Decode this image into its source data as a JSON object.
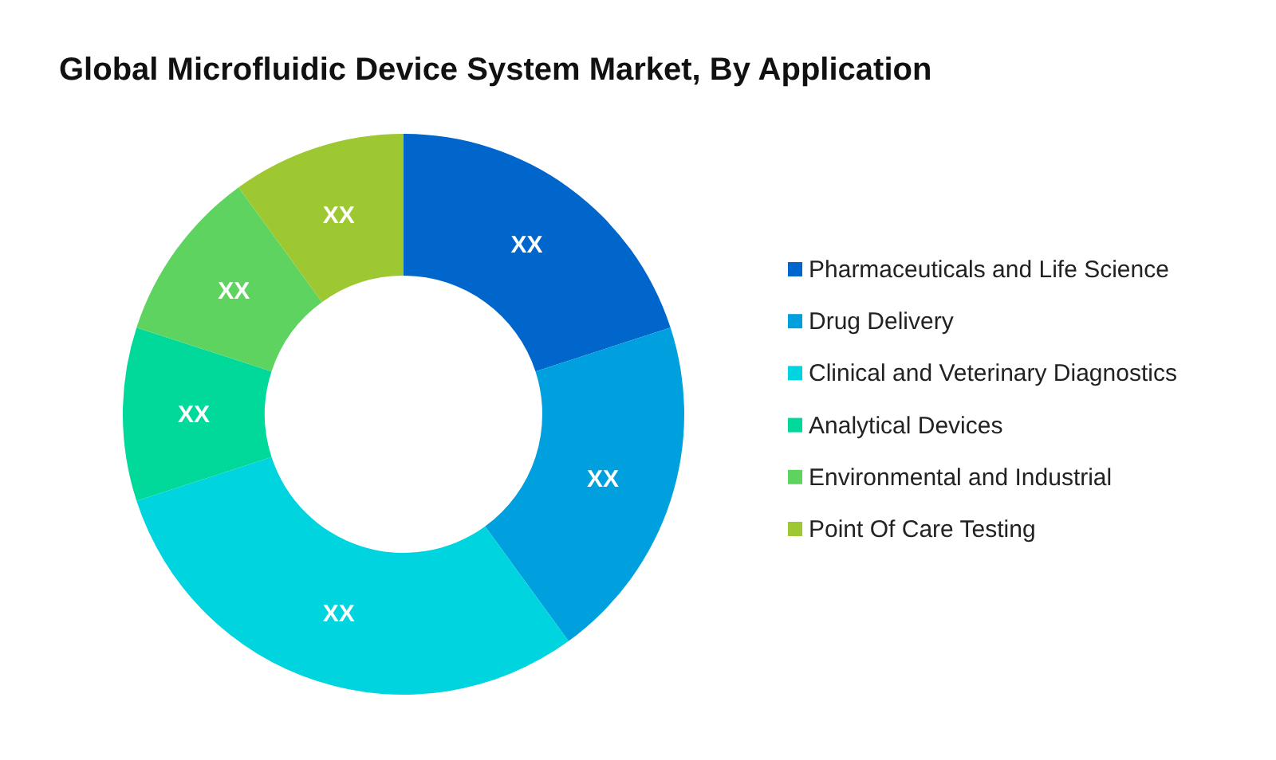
{
  "chart_data": {
    "type": "donut",
    "title": "Global Microfluidic Device System Market, By Application",
    "categories": [
      "Pharmaceuticals and Life Science",
      "Drug Delivery",
      "Clinical and Veterinary Diagnostics",
      "Analytical Devices",
      "Environmental and Industrial",
      "Point Of Care Testing"
    ],
    "values": [
      20,
      20,
      30,
      10,
      10,
      10
    ],
    "colors": [
      "#0066cc",
      "#009fde",
      "#00d4de",
      "#00d99a",
      "#5fd35f",
      "#9dc832"
    ],
    "value_labels": [
      "XX",
      "XX",
      "XX",
      "XX",
      "XX",
      "XX"
    ],
    "legend": "right"
  }
}
